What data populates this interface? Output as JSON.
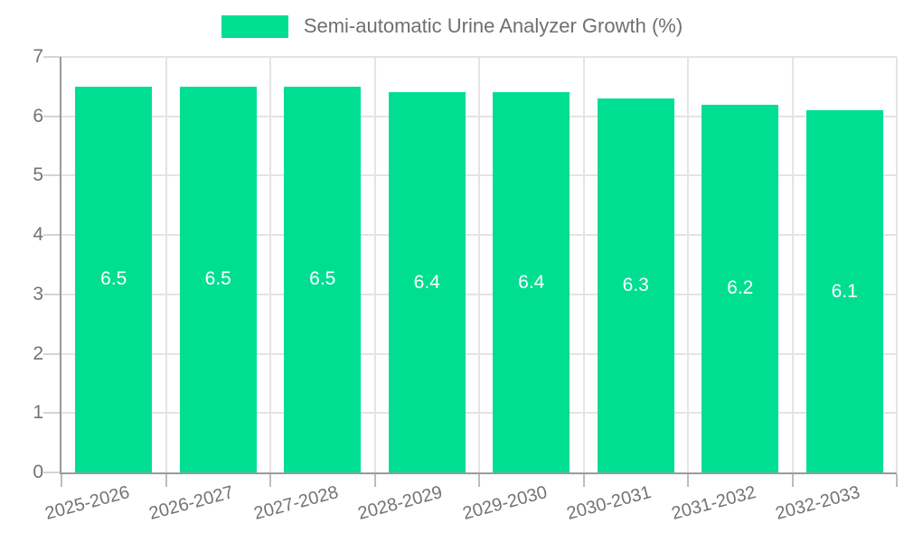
{
  "chart_data": {
    "type": "bar",
    "title": "Semi-automatic Urine Analyzer Growth (%)",
    "categories": [
      "2025-2026",
      "2026-2027",
      "2027-2028",
      "2028-2029",
      "2029-2030",
      "2030-2031",
      "2031-2032",
      "2032-2033"
    ],
    "values": [
      6.5,
      6.5,
      6.5,
      6.4,
      6.4,
      6.3,
      6.2,
      6.1
    ],
    "value_labels": [
      "6.5",
      "6.5",
      "6.5",
      "6.4",
      "6.4",
      "6.3",
      "6.2",
      "6.1"
    ],
    "xlabel": "",
    "ylabel": "",
    "ylim": [
      0,
      7
    ],
    "yticks": [
      0,
      1,
      2,
      3,
      4,
      5,
      6,
      7
    ],
    "grid": true,
    "legend_position": "top",
    "x_label_rotation_deg": -15,
    "colors": {
      "bar": "#00de92",
      "bar_value_text": "#ffffff",
      "axis_text": "#737373",
      "legend_text": "#6f6f6f",
      "gridline": "#e4e4e4",
      "axis_line": "#9a9a9a",
      "background": "#ffffff"
    }
  }
}
